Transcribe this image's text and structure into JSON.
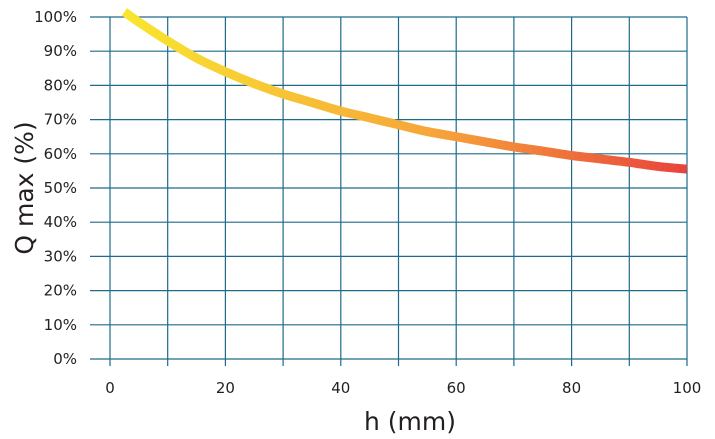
{
  "chart_data": {
    "type": "line",
    "title": "",
    "xlabel": "h (mm)",
    "ylabel": "Q max (%)",
    "xlim": [
      0,
      100
    ],
    "ylim": [
      0,
      100
    ],
    "x_ticks": [
      "0",
      "20",
      "40",
      "60",
      "80",
      "100"
    ],
    "y_ticks": [
      "0%",
      "10%",
      "20%",
      "30%",
      "40%",
      "50%",
      "60%",
      "70%",
      "80%",
      "90%",
      "100%"
    ],
    "grid": true,
    "series": [
      {
        "x": [
          2.5,
          5,
          10,
          15,
          20,
          25,
          30,
          35,
          40,
          45,
          50,
          55,
          60,
          65,
          70,
          75,
          80,
          85,
          90,
          95,
          100
        ],
        "y": [
          101.5,
          98.5,
          93,
          88,
          84,
          80.5,
          77.5,
          75,
          72.5,
          70.5,
          68.5,
          66.5,
          65,
          63.5,
          62,
          60.8,
          59.5,
          58.5,
          57.5,
          56.3,
          55.5
        ]
      }
    ],
    "colors": {
      "grid": "#1f6a8a",
      "line_start": "#f9e52f",
      "line_mid": "#f6a53a",
      "line_end": "#e8433c",
      "text": "#231f20"
    }
  }
}
